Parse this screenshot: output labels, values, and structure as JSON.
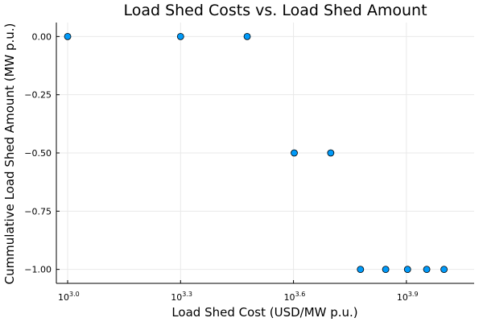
{
  "chart_data": {
    "type": "scatter",
    "title": "Load Shed Costs vs. Load Shed Amount",
    "xlabel": "Load Shed Cost (USD/MW p.u.)",
    "ylabel": "Cummulative Load Shed Amount (MW p.u.)",
    "x_scale": "log10",
    "x_exponent_range": [
      2.97,
      4.08
    ],
    "ylim": [
      -1.06,
      0.06
    ],
    "grid": true,
    "point_color": "#009af9",
    "x_ticks": [
      {
        "base": "10",
        "exp": "3.0",
        "value": 3.0
      },
      {
        "base": "10",
        "exp": "3.3",
        "value": 3.3
      },
      {
        "base": "10",
        "exp": "3.6",
        "value": 3.6
      },
      {
        "base": "10",
        "exp": "3.9",
        "value": 3.9
      }
    ],
    "y_ticks": [
      {
        "label": "0.00",
        "value": 0.0
      },
      {
        "label": "−0.25",
        "value": -0.25
      },
      {
        "label": "−0.50",
        "value": -0.5
      },
      {
        "label": "−0.75",
        "value": -0.75
      },
      {
        "label": "−1.00",
        "value": -1.0
      }
    ],
    "points": [
      {
        "log10x": 3.0,
        "y": 0.0
      },
      {
        "log10x": 3.3,
        "y": 0.0
      },
      {
        "log10x": 3.477,
        "y": 0.0
      },
      {
        "log10x": 3.602,
        "y": -0.5
      },
      {
        "log10x": 3.699,
        "y": -0.5
      },
      {
        "log10x": 3.778,
        "y": -1.0
      },
      {
        "log10x": 3.845,
        "y": -1.0
      },
      {
        "log10x": 3.903,
        "y": -1.0
      },
      {
        "log10x": 3.954,
        "y": -1.0
      },
      {
        "log10x": 4.0,
        "y": -1.0
      }
    ]
  }
}
